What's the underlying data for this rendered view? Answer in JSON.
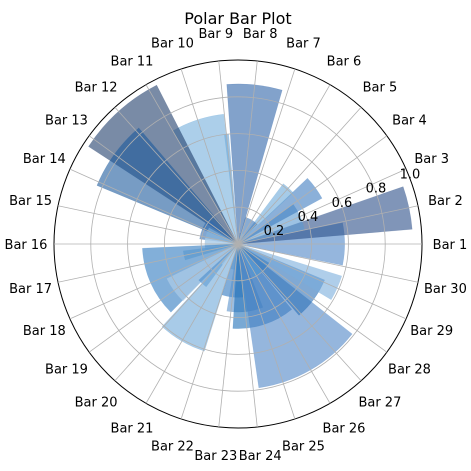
{
  "chart_data": {
    "type": "bar",
    "projection": "polar",
    "title": "Polar Bar Plot",
    "categories": [
      "Bar 1",
      "Bar 2",
      "Bar 3",
      "Bar 4",
      "Bar 5",
      "Bar 6",
      "Bar 7",
      "Bar 8",
      "Bar 9",
      "Bar 10",
      "Bar 11",
      "Bar 12",
      "Bar 13",
      "Bar 14",
      "Bar 15",
      "Bar 16",
      "Bar 17",
      "Bar 18",
      "Bar 19",
      "Bar 20",
      "Bar 21",
      "Bar 22",
      "Bar 23",
      "Bar 24",
      "Bar 25",
      "Bar 26",
      "Bar 27",
      "Bar 28",
      "Bar 29",
      "Bar 30"
    ],
    "values": [
      0.58,
      0.95,
      0.37,
      0.52,
      0.41,
      0.15,
      0.06,
      0.87,
      0.6,
      0.71,
      0.02,
      0.97,
      0.83,
      0.21,
      0.18,
      0.18,
      0.3,
      0.52,
      0.43,
      0.29,
      0.61,
      0.14,
      0.29,
      0.37,
      0.46,
      0.79,
      0.2,
      0.51,
      0.59,
      0.05
    ],
    "widths": [
      0.4,
      0.25,
      0.42,
      0.26,
      0.18,
      0.51,
      0.33,
      0.35,
      0.04,
      0.41,
      0.37,
      0.52,
      0.47,
      0.58,
      0.6,
      0.35,
      0.17,
      0.75,
      0.35,
      0.19,
      0.44,
      0.75,
      0.4,
      0.54,
      0.75,
      0.76,
      0.58,
      0.47,
      0.24,
      0.43
    ],
    "colors": [
      "#4f86c6",
      "#2c4f88",
      "#5a9ad0",
      "#3d7bbf",
      "#6aa8d8",
      "#3b75b5",
      "#8cbbe0",
      "#2f64a8",
      "#5f9fd3",
      "#74afdc",
      "#7fb2dd",
      "#1f3d6b",
      "#1d5a9c",
      "#2f6bb0",
      "#84b7df",
      "#bcd6ec",
      "#90c1e3",
      "#2e7ac0",
      "#b4d1ea",
      "#4a8ccb",
      "#6ea9d9",
      "#a8cbe8",
      "#2d76c0",
      "#5b93cc",
      "#1f6fb8",
      "#4f86c6",
      "#5098d2",
      "#2b70b8",
      "#7aaedc",
      "#bfd8ee"
    ],
    "alpha": 0.6,
    "ylim": [
      0,
      1.0
    ],
    "radial_ticks": [
      "0.2",
      "0.4",
      "0.6",
      "0.8",
      "1.0"
    ],
    "radial_tick_values": [
      0.2,
      0.4,
      0.6,
      0.8,
      1.0
    ],
    "grid": true
  }
}
